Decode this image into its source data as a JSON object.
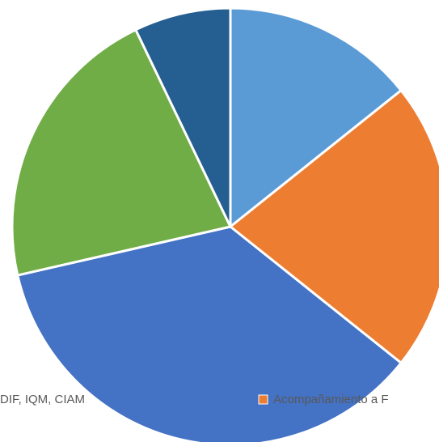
{
  "chart_data": {
    "type": "pie",
    "categories": [
      "DIF, IQM, CIAM",
      "Acompañamiento a F",
      null,
      null,
      null
    ],
    "values": [
      2,
      3,
      5,
      3,
      1
    ],
    "colors": [
      "#5b9bd5",
      "#ed7d31",
      "#4472c4",
      "#70ad47",
      "#255e91"
    ],
    "legend": "bottom"
  }
}
